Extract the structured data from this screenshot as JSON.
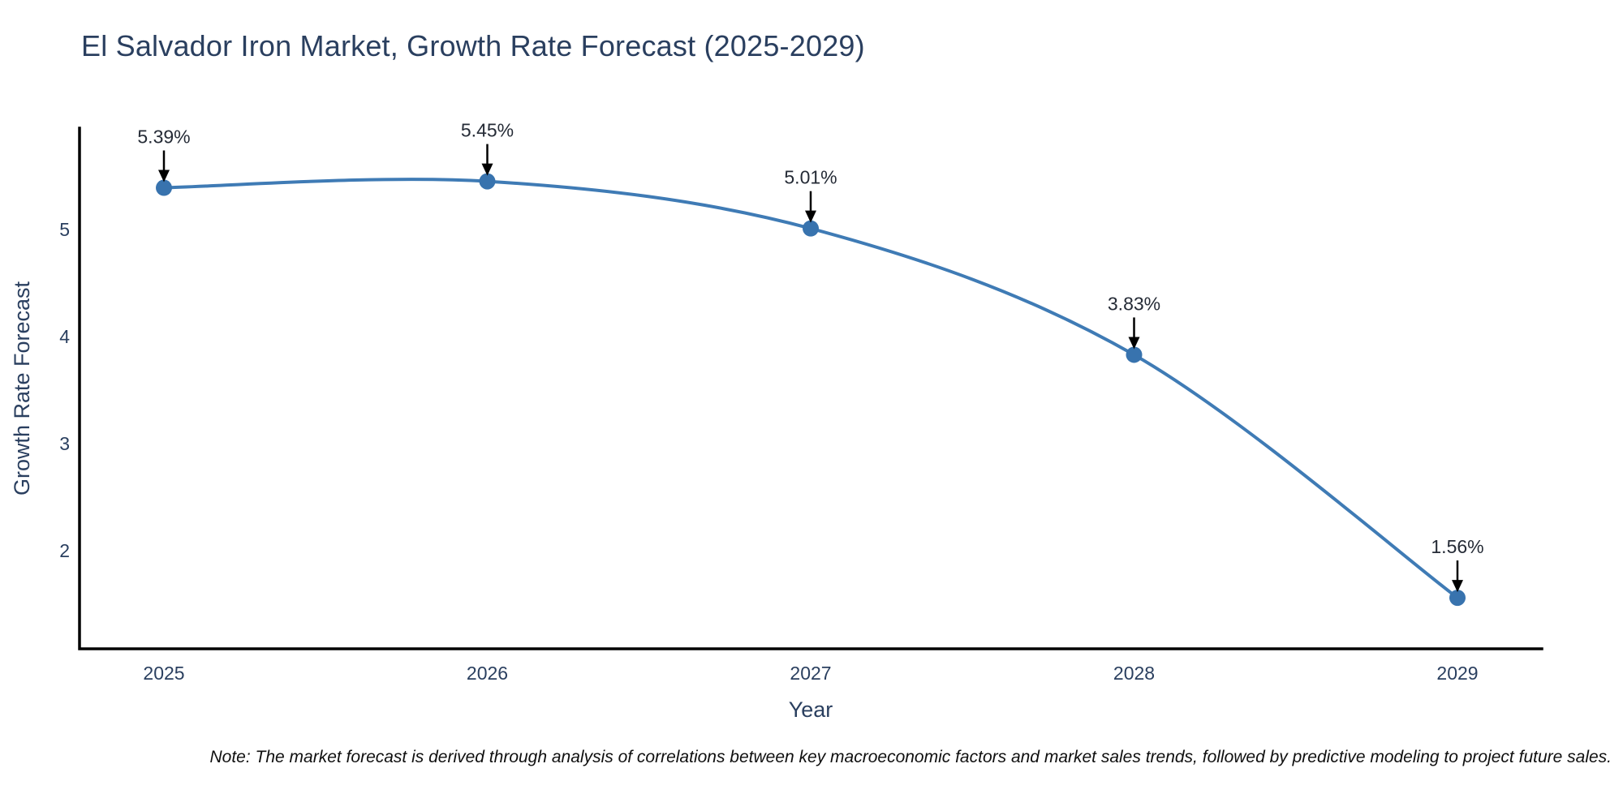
{
  "title": "El Salvador Iron Market, Growth Rate Forecast (2025-2029)",
  "note": "Note: The market forecast is derived through analysis of correlations between key macroeconomic factors and market sales trends, followed by predictive modeling to project future sales.",
  "chart_data": {
    "type": "line",
    "title": "El Salvador Iron Market, Growth Rate Forecast (2025-2029)",
    "xlabel": "Year",
    "ylabel": "Growth Rate Forecast",
    "x": [
      2025,
      2026,
      2027,
      2028,
      2029
    ],
    "values": [
      5.39,
      5.45,
      5.01,
      3.83,
      1.56
    ],
    "point_labels": [
      "5.39%",
      "5.45%",
      "5.01%",
      "3.83%",
      "1.56%"
    ],
    "yticks": [
      2,
      3,
      4,
      5
    ],
    "ylim": [
      1.08,
      5.95
    ],
    "xlim": [
      2024.74,
      2029.26
    ],
    "grid": false,
    "legend_position": "none",
    "smooth": true,
    "line_color": "#3f7bb5",
    "marker_color": "#3873ae",
    "arrow_color": "#000000",
    "axis_color": "#000000",
    "text_color": "#2a3f5f",
    "annotation_text_color": "#252b36",
    "background": "#ffffff"
  }
}
